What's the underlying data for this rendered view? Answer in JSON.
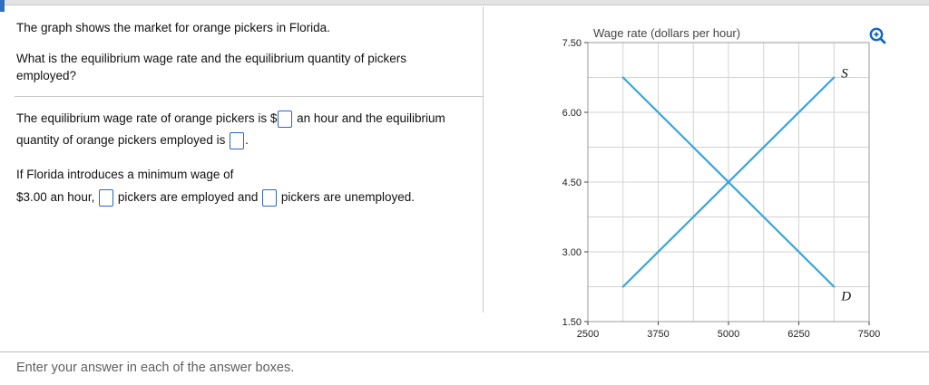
{
  "question": {
    "intro": "The graph shows the market for orange pickers in Florida.",
    "prompt": "What is the equilibrium wage rate and the equilibrium quantity of pickers employed?",
    "s1_before_wage": "The equilibrium wage rate of orange pickers is $",
    "s1_mid": " an hour and the equilibrium quantity of orange pickers employed is ",
    "s1_after": ".",
    "s2_line1": "If Florida introduces a minimum wage of",
    "s2_before_employed": "$3.00 an hour, ",
    "s2_mid": " pickers are employed and ",
    "s2_after": " pickers are unemployed."
  },
  "footer": {
    "instruction": "Enter your answer in each of the answer boxes."
  },
  "chart_data": {
    "type": "line",
    "title": "Wage rate (dollars per hour)",
    "xlim": [
      2500,
      7500
    ],
    "ylim": [
      1.5,
      7.5
    ],
    "x_grid_step": 625,
    "y_grid_step": 0.75,
    "grid": true,
    "grid_color": "#d3d3d3",
    "border_color": "#9a9a9a",
    "line_color": "#39a5dd",
    "x_ticks": [
      {
        "v": 2500,
        "label": "2500"
      },
      {
        "v": 3750,
        "label": "3750"
      },
      {
        "v": 5000,
        "label": "5000"
      },
      {
        "v": 6250,
        "label": "6250"
      },
      {
        "v": 7500,
        "label": "7500"
      }
    ],
    "y_ticks": [
      {
        "v": 7.5,
        "label": "7.50"
      },
      {
        "v": 6.0,
        "label": "6.00"
      },
      {
        "v": 4.5,
        "label": "4.50"
      },
      {
        "v": 3.0,
        "label": "3.00"
      },
      {
        "v": 1.5,
        "label": "1.50"
      }
    ],
    "series": [
      {
        "id": "supply",
        "label": "S",
        "points": [
          [
            3125,
            2.25
          ],
          [
            6875,
            6.75
          ]
        ],
        "label_dx": 8,
        "label_dy": 0
      },
      {
        "id": "demand",
        "label": "D",
        "points": [
          [
            3125,
            6.75
          ],
          [
            6875,
            2.25
          ]
        ],
        "label_dx": 8,
        "label_dy": 15
      }
    ],
    "equilibrium": {
      "x": 5000,
      "y": 4.5
    }
  }
}
